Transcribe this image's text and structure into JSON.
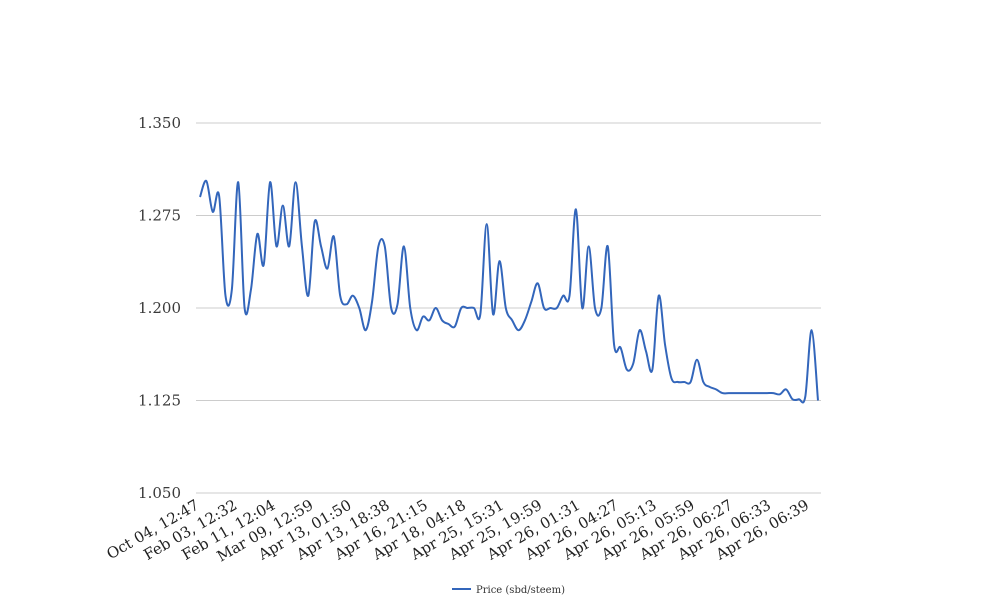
{
  "chart_data": {
    "type": "line",
    "title": "",
    "xlabel": "",
    "ylabel": "",
    "ylim": [
      1.05,
      1.35
    ],
    "yticks": [
      "1.050",
      "1.125",
      "1.200",
      "1.275",
      "1.350"
    ],
    "ytick_values": [
      1.05,
      1.125,
      1.2,
      1.275,
      1.35
    ],
    "xtick_labels": [
      "Oct 04, 12:47",
      "Feb 03, 12:32",
      "Feb 11, 12:04",
      "Mar 09, 12:59",
      "Apr 13, 01:50",
      "Apr 13, 18:38",
      "Apr 16, 21:15",
      "Apr 18, 04:18",
      "Apr 25, 15:31",
      "Apr 25, 19:59",
      "Apr 26, 01:31",
      "Apr 26, 04:27",
      "Apr 26, 05:13",
      "Apr 26, 05:59",
      "Apr 26, 06:27",
      "Apr 26, 06:33",
      "Apr 26, 06:39"
    ],
    "grid": true,
    "legend_position": "bottom",
    "series": [
      {
        "name": "Price (sbd/steem)",
        "color": "#3366bb",
        "values": [
          1.29,
          1.303,
          1.278,
          1.291,
          1.21,
          1.215,
          1.302,
          1.2,
          1.215,
          1.26,
          1.235,
          1.302,
          1.25,
          1.283,
          1.25,
          1.302,
          1.25,
          1.21,
          1.27,
          1.25,
          1.232,
          1.258,
          1.21,
          1.203,
          1.21,
          1.2,
          1.182,
          1.205,
          1.25,
          1.25,
          1.2,
          1.203,
          1.25,
          1.2,
          1.182,
          1.193,
          1.19,
          1.2,
          1.19,
          1.187,
          1.185,
          1.2,
          1.2,
          1.2,
          1.195,
          1.268,
          1.195,
          1.238,
          1.2,
          1.19,
          1.182,
          1.19,
          1.205,
          1.22,
          1.2,
          1.2,
          1.2,
          1.21,
          1.21,
          1.28,
          1.2,
          1.25,
          1.2,
          1.2,
          1.25,
          1.17,
          1.168,
          1.15,
          1.155,
          1.182,
          1.165,
          1.15,
          1.21,
          1.17,
          1.143,
          1.14,
          1.14,
          1.14,
          1.158,
          1.14,
          1.136,
          1.134,
          1.131,
          1.131,
          1.131,
          1.131,
          1.131,
          1.131,
          1.131,
          1.131,
          1.131,
          1.13,
          1.134,
          1.126,
          1.126,
          1.128,
          1.182,
          1.125
        ]
      }
    ]
  }
}
